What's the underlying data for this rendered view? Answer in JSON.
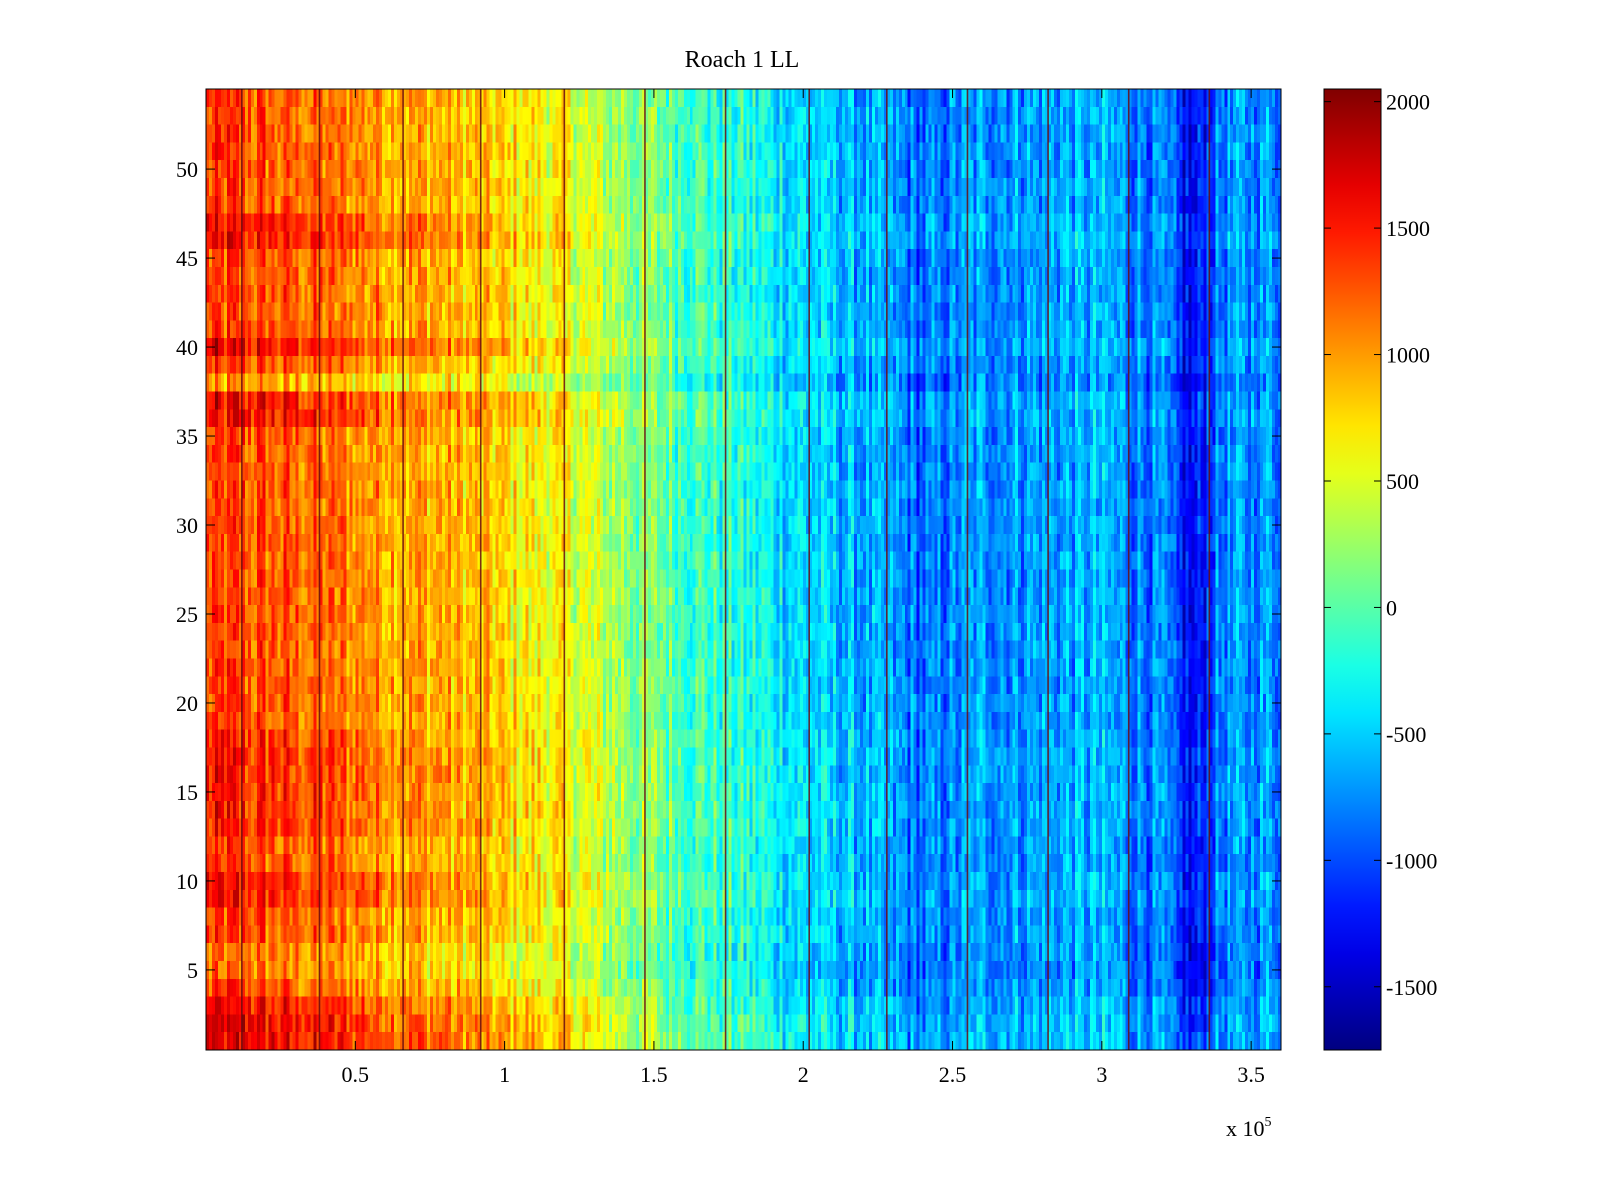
{
  "chart_data": {
    "type": "heatmap",
    "title": "Roach 1 LL",
    "xlabel": "",
    "ylabel": "",
    "x_range": [
      0,
      360000
    ],
    "y_range": [
      0.5,
      54.5
    ],
    "rows": 54,
    "columns": 360,
    "colormap": "jet",
    "x_ticks": [
      {
        "value": 50000,
        "label": "0.5"
      },
      {
        "value": 100000,
        "label": "1"
      },
      {
        "value": 150000,
        "label": "1.5"
      },
      {
        "value": 200000,
        "label": "2"
      },
      {
        "value": 250000,
        "label": "2.5"
      },
      {
        "value": 300000,
        "label": "3"
      },
      {
        "value": 350000,
        "label": "3.5"
      }
    ],
    "x_multiplier": {
      "base": "x 10",
      "exponent": "5"
    },
    "y_ticks": [
      {
        "value": 5,
        "label": "5"
      },
      {
        "value": 10,
        "label": "10"
      },
      {
        "value": 15,
        "label": "15"
      },
      {
        "value": 20,
        "label": "20"
      },
      {
        "value": 25,
        "label": "25"
      },
      {
        "value": 30,
        "label": "30"
      },
      {
        "value": 35,
        "label": "35"
      },
      {
        "value": 40,
        "label": "40"
      },
      {
        "value": 45,
        "label": "45"
      },
      {
        "value": 50,
        "label": "50"
      }
    ],
    "colorbar": {
      "range": [
        -1750,
        2050
      ],
      "ticks": [
        {
          "value": 2000,
          "label": "2000"
        },
        {
          "value": 1500,
          "label": "1500"
        },
        {
          "value": 1000,
          "label": "1000"
        },
        {
          "value": 500,
          "label": "500"
        },
        {
          "value": 0,
          "label": "0"
        },
        {
          "value": -500,
          "label": "-500"
        },
        {
          "value": -1000,
          "label": "-1000"
        },
        {
          "value": -1500,
          "label": "-1500"
        }
      ]
    },
    "trend_profile": {
      "x": [
        0,
        10000,
        40000,
        80000,
        120000,
        150000,
        200000,
        230000,
        240000,
        260000,
        300000,
        320000,
        330000,
        340000,
        360000
      ],
      "value": [
        1300,
        1300,
        1150,
        900,
        550,
        100,
        -450,
        -750,
        -900,
        -700,
        -650,
        -850,
        -1350,
        -800,
        -700
      ]
    },
    "row_offsets": [
      {
        "rows": [
          1,
          2
        ],
        "offset": 400
      },
      {
        "rows": [
          3
        ],
        "offset": 250
      },
      {
        "rows": [
          5,
          6
        ],
        "offset": -200
      },
      {
        "rows": [
          9,
          10
        ],
        "offset": 200
      },
      {
        "rows": [
          13,
          14,
          15,
          16,
          17,
          18
        ],
        "offset": 150
      },
      {
        "rows": [
          36,
          37
        ],
        "offset": 250
      },
      {
        "rows": [
          38
        ],
        "offset": -350
      },
      {
        "rows": [
          40
        ],
        "offset": 300
      },
      {
        "rows": [
          46,
          47
        ],
        "offset": 250
      }
    ],
    "vertical_lines_x": [
      12000,
      38000,
      66000,
      92000,
      120000,
      147000,
      174000,
      202000,
      228000,
      255000,
      282000,
      309000,
      336000
    ]
  }
}
